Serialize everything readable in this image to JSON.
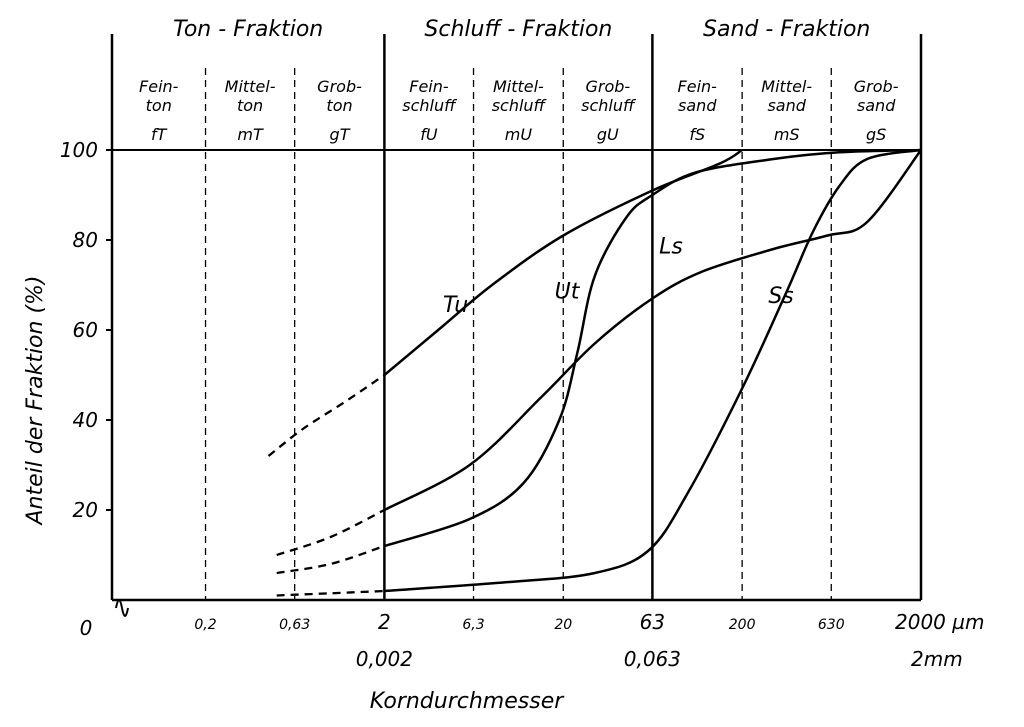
{
  "chart_data": {
    "type": "line",
    "title": "",
    "xlabel": "Korndurchmesser",
    "ylabel": "Anteil der Fraktion (%)",
    "x_scale": "log",
    "x_unit": "µm",
    "xlim": [
      0.06,
      2000
    ],
    "ylim": [
      0,
      100
    ],
    "grid": false,
    "y_ticks": [
      {
        "value": 20,
        "label": "20"
      },
      {
        "value": 40,
        "label": "40"
      },
      {
        "value": 60,
        "label": "60"
      },
      {
        "value": 80,
        "label": "80"
      },
      {
        "value": 100,
        "label": "100"
      }
    ],
    "y_origin_label": "0",
    "x_ticks": [
      {
        "value": 0.2,
        "label": "0,2",
        "size": "small"
      },
      {
        "value": 0.63,
        "label": "0,63",
        "size": "small"
      },
      {
        "value": 2,
        "label": "2",
        "size": "large"
      },
      {
        "value": 6.3,
        "label": "6,3",
        "size": "small"
      },
      {
        "value": 20,
        "label": "20",
        "size": "small"
      },
      {
        "value": 63,
        "label": "63",
        "size": "large"
      },
      {
        "value": 200,
        "label": "200",
        "size": "small"
      },
      {
        "value": 630,
        "label": "630",
        "size": "small"
      },
      {
        "value": 2000,
        "label": "2000 µm",
        "size": "large"
      }
    ],
    "x_mm_labels": [
      {
        "value": 2,
        "label": "0,002"
      },
      {
        "value": 63,
        "label": "0,063"
      },
      {
        "value": 2000,
        "label": "2mm"
      }
    ],
    "fractions": [
      {
        "label": "Ton - Fraktion",
        "from": 0.06,
        "to": 2
      },
      {
        "label": "Schluff - Fraktion",
        "from": 2,
        "to": 63
      },
      {
        "label": "Sand - Fraktion",
        "from": 63,
        "to": 2000
      }
    ],
    "major_boundaries": [
      2,
      63,
      2000
    ],
    "minor_boundaries": [
      0.2,
      0.63,
      6.3,
      20,
      200,
      630
    ],
    "subfractions": [
      {
        "name": "Fein-\nton",
        "abbr": "fT",
        "from": 0.06,
        "to": 0.2
      },
      {
        "name": "Mittel-\nton",
        "abbr": "mT",
        "from": 0.2,
        "to": 0.63
      },
      {
        "name": "Grob-\nton",
        "abbr": "gT",
        "from": 0.63,
        "to": 2
      },
      {
        "name": "Fein-\nschluff",
        "abbr": "fU",
        "from": 2,
        "to": 6.3
      },
      {
        "name": "Mittel-\nschluff",
        "abbr": "mU",
        "from": 6.3,
        "to": 20
      },
      {
        "name": "Grob-\nschluff",
        "abbr": "gU",
        "from": 20,
        "to": 63
      },
      {
        "name": "Fein-\nsand",
        "abbr": "fS",
        "from": 63,
        "to": 200
      },
      {
        "name": "Mittel-\nsand",
        "abbr": "mS",
        "from": 200,
        "to": 630
      },
      {
        "name": "Grob-\nsand",
        "abbr": "gS",
        "from": 630,
        "to": 2000
      }
    ],
    "series": [
      {
        "name": "Tu",
        "dashed": [
          [
            0.45,
            32
          ],
          [
            0.7,
            38
          ],
          [
            1.2,
            44
          ],
          [
            2,
            50
          ]
        ],
        "values": [
          [
            2,
            50
          ],
          [
            4,
            60
          ],
          [
            8,
            70
          ],
          [
            20,
            81
          ],
          [
            63,
            91
          ],
          [
            150,
            97
          ],
          [
            200,
            100
          ]
        ]
      },
      {
        "name": "Ut",
        "dashed": [
          [
            0.5,
            6
          ],
          [
            1.0,
            8
          ],
          [
            2,
            12
          ]
        ],
        "values": [
          [
            2,
            12
          ],
          [
            6,
            18
          ],
          [
            12,
            26
          ],
          [
            19,
            40
          ],
          [
            24,
            55
          ],
          [
            30,
            72
          ],
          [
            45,
            85
          ],
          [
            63,
            90
          ],
          [
            110,
            95
          ],
          [
            300,
            98
          ],
          [
            700,
            99.5
          ],
          [
            2000,
            100
          ]
        ]
      },
      {
        "name": "Ls",
        "dashed": [
          [
            0.5,
            10
          ],
          [
            1.0,
            14
          ],
          [
            2,
            20
          ]
        ],
        "values": [
          [
            2,
            20
          ],
          [
            6,
            30
          ],
          [
            15,
            45
          ],
          [
            30,
            57
          ],
          [
            63,
            67
          ],
          [
            120,
            73
          ],
          [
            300,
            78
          ],
          [
            600,
            81
          ],
          [
            1000,
            84
          ],
          [
            2000,
            100
          ]
        ]
      },
      {
        "name": "Ss",
        "dashed": [
          [
            0.5,
            1
          ],
          [
            1.0,
            1.5
          ],
          [
            2,
            2
          ]
        ],
        "values": [
          [
            2,
            2
          ],
          [
            10,
            4
          ],
          [
            30,
            6
          ],
          [
            60,
            11
          ],
          [
            100,
            24
          ],
          [
            200,
            47
          ],
          [
            350,
            68
          ],
          [
            500,
            82
          ],
          [
            700,
            92
          ],
          [
            1000,
            98
          ],
          [
            2000,
            100
          ]
        ]
      }
    ],
    "series_labels": [
      {
        "name": "Tu",
        "x": 5,
        "y": 64
      },
      {
        "name": "Ut",
        "x": 21,
        "y": 67
      },
      {
        "name": "Ls",
        "x": 80,
        "y": 77
      },
      {
        "name": "Ss",
        "x": 330,
        "y": 66
      }
    ]
  }
}
